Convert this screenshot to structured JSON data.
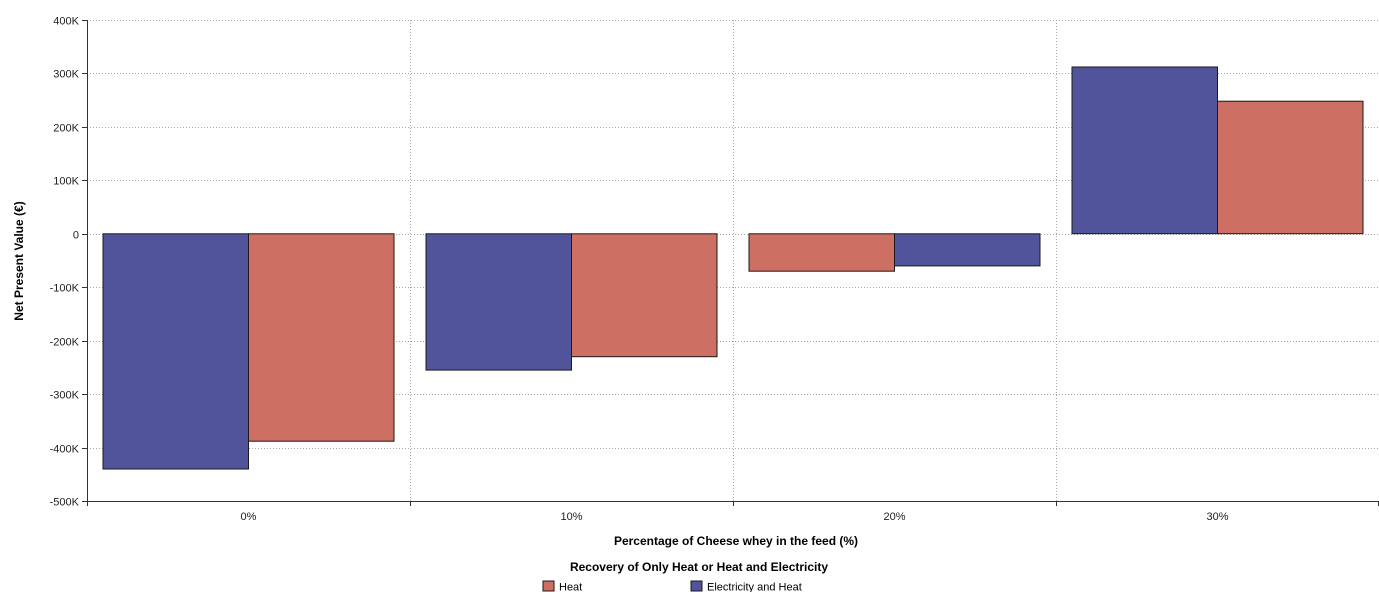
{
  "chart_data": {
    "type": "bar",
    "categories": [
      "0%",
      "10%",
      "20%",
      "30%"
    ],
    "series": [
      {
        "name": "Electricity and Heat",
        "color": "#52549b",
        "values": [
          -440000,
          -255000,
          -60000,
          312000
        ]
      },
      {
        "name": "Heat",
        "color": "#cd6f63",
        "values": [
          -388000,
          -230000,
          -70000,
          248000
        ]
      }
    ],
    "series_order_per_category": [
      [
        0,
        1
      ],
      [
        0,
        1
      ],
      [
        1,
        0
      ],
      [
        0,
        1
      ]
    ],
    "xlabel": "Percentage of Cheese whey in the feed (%)",
    "ylabel": "Net Present Value (€)",
    "ylim": [
      -500000,
      400000
    ],
    "yticks": [
      {
        "value": 400000,
        "label": "400K"
      },
      {
        "value": 300000,
        "label": "300K"
      },
      {
        "value": 200000,
        "label": "200K"
      },
      {
        "value": 100000,
        "label": "100K"
      },
      {
        "value": 0,
        "label": "0"
      },
      {
        "value": -100000,
        "label": "-100K"
      },
      {
        "value": -200000,
        "label": "-200K"
      },
      {
        "value": -300000,
        "label": "-300K"
      },
      {
        "value": -400000,
        "label": "-400K"
      },
      {
        "value": -500000,
        "label": "-500K"
      }
    ],
    "grid": true,
    "legend": {
      "title": "Recovery of Only Heat or Heat and Electricity",
      "placement": "bottom-center",
      "items": [
        {
          "label": "Heat",
          "color": "#cd6f63"
        },
        {
          "label": "Electricity and Heat",
          "color": "#52549b"
        }
      ]
    }
  }
}
